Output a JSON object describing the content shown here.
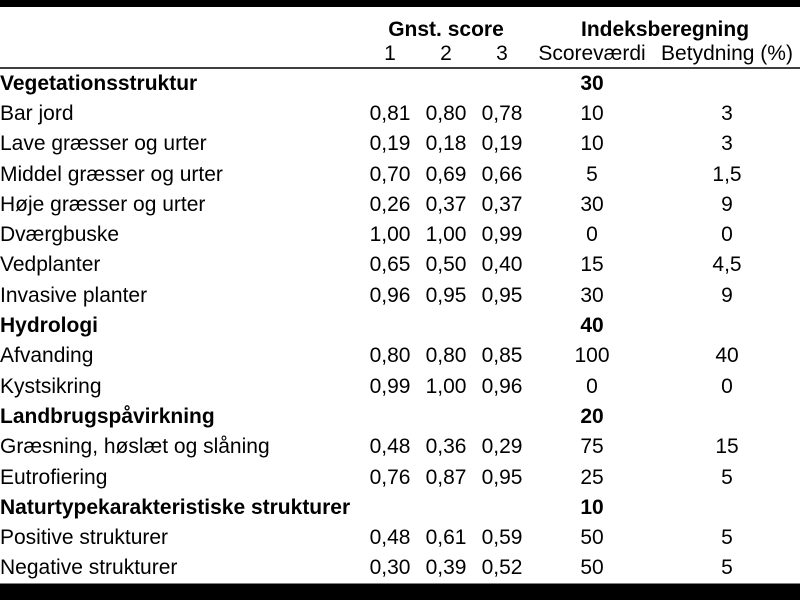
{
  "table": {
    "header_groups": {
      "gnst_score": "Gnst. score",
      "indeksberegning": "Indeksberegning"
    },
    "columns": {
      "score1": "1",
      "score2": "2",
      "score3": "3",
      "scorevaerdi": "Scoreværdi",
      "betydning": "Betydning (%)"
    },
    "rows": [
      {
        "type": "group",
        "label": "Vegetationsstruktur",
        "score1": "",
        "score2": "",
        "score3": "",
        "scorevaerdi": "30",
        "betydning": ""
      },
      {
        "type": "item",
        "label": "Bar jord",
        "score1": "0,81",
        "score2": "0,80",
        "score3": "0,78",
        "scorevaerdi": "10",
        "betydning": "3"
      },
      {
        "type": "item",
        "label": "Lave græsser og urter",
        "score1": "0,19",
        "score2": "0,18",
        "score3": "0,19",
        "scorevaerdi": "10",
        "betydning": "3"
      },
      {
        "type": "item",
        "label": "Middel græsser og urter",
        "score1": "0,70",
        "score2": "0,69",
        "score3": "0,66",
        "scorevaerdi": "5",
        "betydning": "1,5"
      },
      {
        "type": "item",
        "label": "Høje græsser og urter",
        "score1": "0,26",
        "score2": "0,37",
        "score3": "0,37",
        "scorevaerdi": "30",
        "betydning": "9"
      },
      {
        "type": "item",
        "label": "Dværgbuske",
        "score1": "1,00",
        "score2": "1,00",
        "score3": "0,99",
        "scorevaerdi": "0",
        "betydning": "0"
      },
      {
        "type": "item",
        "label": "Vedplanter",
        "score1": "0,65",
        "score2": "0,50",
        "score3": "0,40",
        "scorevaerdi": "15",
        "betydning": "4,5"
      },
      {
        "type": "item",
        "label": "Invasive planter",
        "score1": "0,96",
        "score2": "0,95",
        "score3": "0,95",
        "scorevaerdi": "30",
        "betydning": "9"
      },
      {
        "type": "group",
        "label": "Hydrologi",
        "score1": "",
        "score2": "",
        "score3": "",
        "scorevaerdi": "40",
        "betydning": ""
      },
      {
        "type": "item",
        "label": "Afvanding",
        "score1": "0,80",
        "score2": "0,80",
        "score3": "0,85",
        "scorevaerdi": "100",
        "betydning": "40"
      },
      {
        "type": "item",
        "label": "Kystsikring",
        "score1": "0,99",
        "score2": "1,00",
        "score3": "0,96",
        "scorevaerdi": "0",
        "betydning": "0"
      },
      {
        "type": "group",
        "label": "Landbrugspåvirkning",
        "score1": "",
        "score2": "",
        "score3": "",
        "scorevaerdi": "20",
        "betydning": ""
      },
      {
        "type": "item",
        "label": "Græsning, høslæt og slåning",
        "score1": "0,48",
        "score2": "0,36",
        "score3": "0,29",
        "scorevaerdi": "75",
        "betydning": "15"
      },
      {
        "type": "item",
        "label": "Eutrofiering",
        "score1": "0,76",
        "score2": "0,87",
        "score3": "0,95",
        "scorevaerdi": "25",
        "betydning": "5"
      },
      {
        "type": "group",
        "label": "Naturtypekarakteristiske strukturer",
        "score1": "",
        "score2": "",
        "score3": "",
        "scorevaerdi": "10",
        "betydning": ""
      },
      {
        "type": "item",
        "label": "Positive strukturer",
        "score1": "0,48",
        "score2": "0,61",
        "score3": "0,59",
        "scorevaerdi": "50",
        "betydning": "5"
      },
      {
        "type": "item",
        "label": "Negative strukturer",
        "score1": "0,30",
        "score2": "0,39",
        "score3": "0,52",
        "scorevaerdi": "50",
        "betydning": "5"
      }
    ]
  },
  "colors": {
    "bar": "#000000",
    "text": "#000000",
    "header_rule": "#3f3f3f",
    "bottom_rule": "#7f7f7f",
    "background": "#ffffff"
  }
}
